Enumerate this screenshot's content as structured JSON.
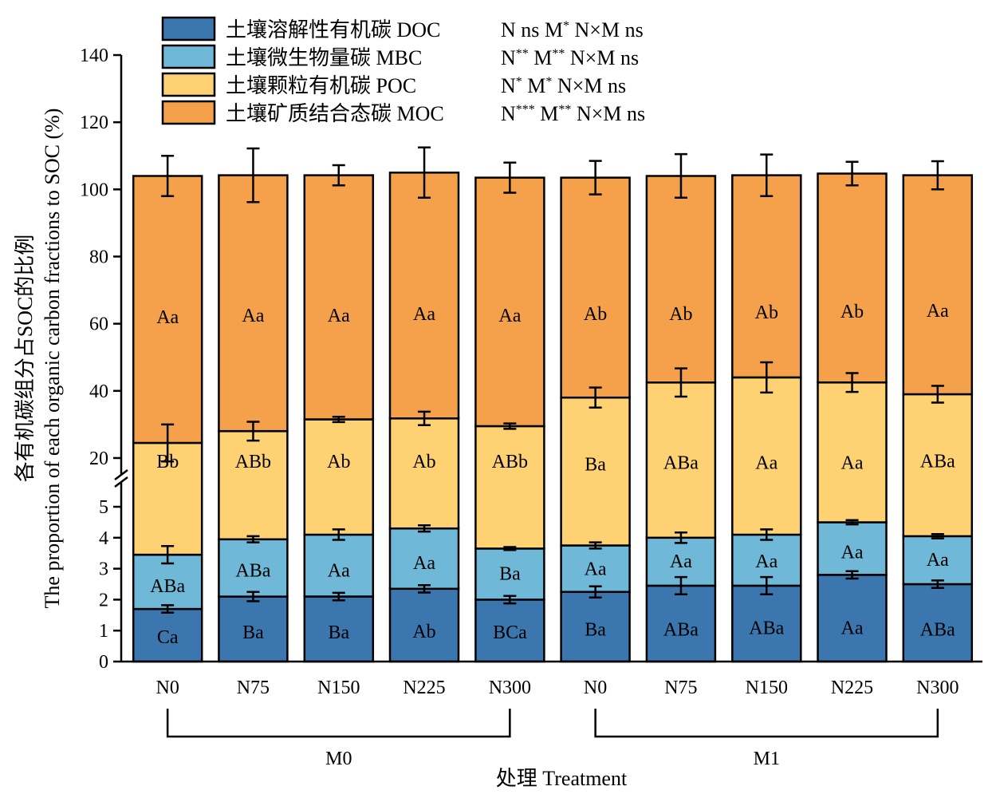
{
  "chart_data": {
    "type": "bar",
    "stacked": true,
    "broken_y_axis": true,
    "categories": [
      "N0",
      "N75",
      "N150",
      "N225",
      "N300",
      "N0",
      "N75",
      "N150",
      "N225",
      "N300"
    ],
    "groups": [
      {
        "label": "M0",
        "categories": [
          0,
          1,
          2,
          3,
          4
        ]
      },
      {
        "label": "M1",
        "categories": [
          5,
          6,
          7,
          8,
          9
        ]
      }
    ],
    "xlabel": "处理 Treatment",
    "ylabel_cn": "各有机碳组分占SOC的比例",
    "ylabel_en": "The proportion of each organic carbon fractions to SOC (%)",
    "y_lower": {
      "ylim": [
        0,
        5.8
      ],
      "ticks": [
        "0",
        "1",
        "2",
        "3",
        "4",
        "5"
      ]
    },
    "y_upper": {
      "ylim": [
        15,
        140
      ],
      "ticks": [
        "20",
        "40",
        "60",
        "80",
        "100",
        "120",
        "140"
      ]
    },
    "series": [
      {
        "name": "土壤溶解性有机碳 DOC",
        "color": "#3B77AE",
        "stat": {
          "parts": [
            [
              "N ns M",
              ""
            ],
            [
              "*",
              "sup"
            ],
            [
              " N×M ns",
              ""
            ]
          ]
        },
        "cumulative_top": [
          1.7,
          2.1,
          2.1,
          2.35,
          2.0,
          2.25,
          2.45,
          2.45,
          2.8,
          2.5
        ],
        "error": [
          0.12,
          0.15,
          0.12,
          0.12,
          0.12,
          0.18,
          0.28,
          0.28,
          0.12,
          0.12
        ],
        "letters": [
          "Ca",
          "Ba",
          "Ba",
          "Ab",
          "BCa",
          "Ba",
          "ABa",
          "ABa",
          "Aa",
          "ABa"
        ],
        "label_y": [
          0.8,
          0.95,
          0.95,
          0.98,
          0.95,
          1.05,
          1.05,
          1.1,
          1.1,
          1.05
        ]
      },
      {
        "name": "土壤微生物量碳 MBC",
        "color": "#6FB8D8",
        "stat": {
          "parts": [
            [
              "N",
              ""
            ],
            [
              "**",
              "sup"
            ],
            [
              " M",
              ""
            ],
            [
              "**",
              "sup"
            ],
            [
              " N×M ns",
              ""
            ]
          ]
        },
        "cumulative_top": [
          3.45,
          3.95,
          4.1,
          4.3,
          3.65,
          3.75,
          4.0,
          4.1,
          4.5,
          4.05
        ],
        "error": [
          0.28,
          0.1,
          0.17,
          0.1,
          0.05,
          0.1,
          0.17,
          0.17,
          0.07,
          0.07
        ],
        "letters": [
          "ABa",
          "ABa",
          "Aa",
          "Aa",
          "Ba",
          "Aa",
          "Aa",
          "Aa",
          "Aa",
          "Aa"
        ],
        "label_y": [
          2.45,
          2.95,
          2.95,
          3.2,
          2.85,
          3.0,
          3.25,
          3.25,
          3.55,
          3.3
        ]
      },
      {
        "name": "土壤颗粒有机碳 POC",
        "color": "#FED172",
        "stat": {
          "parts": [
            [
              "N",
              ""
            ],
            [
              "*",
              "sup"
            ],
            [
              " M",
              ""
            ],
            [
              "*",
              "sup"
            ],
            [
              " N×M ns",
              ""
            ]
          ]
        },
        "cumulative_top": [
          24.5,
          28.0,
          31.5,
          31.8,
          29.5,
          38.0,
          42.5,
          44.0,
          42.5,
          39.0
        ],
        "error": [
          5.5,
          2.8,
          0.8,
          2.0,
          0.8,
          3.0,
          4.2,
          4.5,
          2.8,
          2.5
        ],
        "letters": [
          "Bb",
          "ABb",
          "Ab",
          "Ab",
          "ABb",
          "Ba",
          "ABa",
          "Aa",
          "Aa",
          "ABa"
        ],
        "label_y": [
          19.0,
          19.0,
          19.0,
          19.0,
          19.0,
          18.2,
          18.7,
          18.7,
          18.7,
          19.2
        ]
      },
      {
        "name": "土壤矿质结合态碳 MOC",
        "color": "#F5A04A",
        "stat": {
          "parts": [
            [
              "N",
              ""
            ],
            [
              "***",
              "sup"
            ],
            [
              " M",
              ""
            ],
            [
              "**",
              "sup"
            ],
            [
              " N×M ns",
              ""
            ]
          ]
        },
        "cumulative_top": [
          104.0,
          104.2,
          104.2,
          105.0,
          103.5,
          103.5,
          104.0,
          104.2,
          104.7,
          104.2
        ],
        "error": [
          6.0,
          8.0,
          3.0,
          7.5,
          4.5,
          5.0,
          6.5,
          6.2,
          3.5,
          4.2
        ],
        "letters": [
          "Aa",
          "Aa",
          "Aa",
          "Aa",
          "Aa",
          "Ab",
          "Ab",
          "Ab",
          "Ab",
          "Aa"
        ],
        "label_y": [
          62.0,
          62.5,
          62.5,
          63.0,
          62.5,
          63.0,
          63.0,
          63.5,
          63.7,
          64.0
        ]
      }
    ]
  }
}
